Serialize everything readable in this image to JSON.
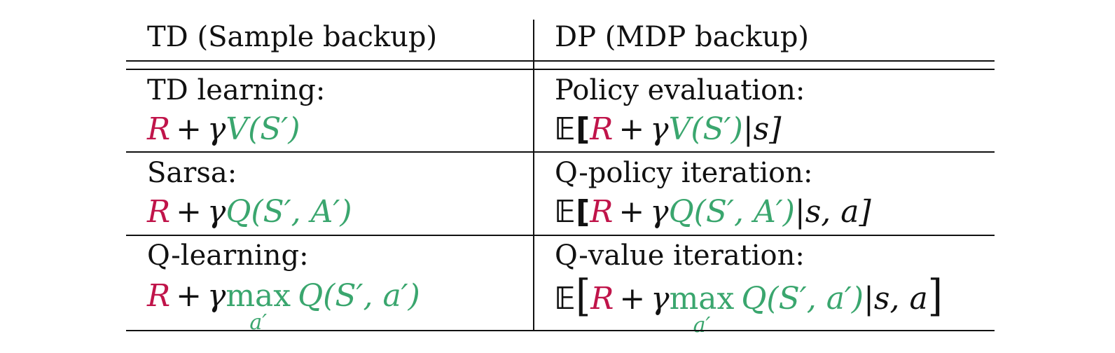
{
  "headers": {
    "left": "TD (Sample backup)",
    "right": "DP (MDP backup)"
  },
  "rows": [
    {
      "left_label": "TD learning:",
      "right_label": "Policy evaluation:",
      "left_formula": {
        "r": "R",
        "plus": "+",
        "gamma": "γ",
        "target": "V(S′)"
      },
      "right_formula": {
        "expect": "𝔼[",
        "r": "R",
        "plus": "+",
        "gamma": "γ",
        "target": "V(S′)",
        "cond": "|s]"
      }
    },
    {
      "left_label": "Sarsa:",
      "right_label": "Q-policy iteration:",
      "left_formula": {
        "r": "R",
        "plus": "+",
        "gamma": "γ",
        "target": "Q(S′, A′)"
      },
      "right_formula": {
        "expect": "𝔼[",
        "r": "R",
        "plus": "+",
        "gamma": "γ",
        "target": "Q(S′, A′)",
        "cond": "|s, a]"
      }
    },
    {
      "left_label": "Q-learning:",
      "right_label": "Q-value iteration:",
      "left_formula": {
        "r": "R",
        "plus": "+",
        "gamma": "γ",
        "max": "max",
        "max_sub": "a′",
        "target": "Q(S′, a′)"
      },
      "right_formula": {
        "expect_open": "𝔼",
        "bracket_open": "[",
        "r": "R",
        "plus": "+",
        "gamma": "γ",
        "max": "max",
        "max_sub": "a′",
        "target": "Q(S′, a′)",
        "cond": "|s, a",
        "bracket_close": "]"
      }
    }
  ],
  "colors": {
    "reward": "#c0144a",
    "target": "#3aa66e",
    "rules": "#111111"
  }
}
